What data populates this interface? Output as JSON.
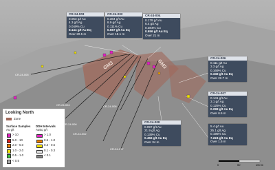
{
  "callouts": [
    {
      "hole": "CR-24-003",
      "lines": [
        "0.053 g/t Au",
        "4.3 g/t Ag",
        "0.049% Cu"
      ],
      "result": "0.144 g/t Au Eq",
      "interval": "Over 20.5 m"
    },
    {
      "hole": "CR-24-002",
      "lines": [
        "0.384 g/t Au",
        "8.9 g/t Ag",
        "0.111% Cu"
      ],
      "result": "0.667 g/t Au Eq",
      "interval": "Over 18.1 m"
    },
    {
      "hole": "CR-24-004",
      "lines": [
        "0.179 g/t Au",
        "6.4 g/t Ag",
        "0.384% Cu"
      ],
      "result": "0.656 g/t Au Eq",
      "interval": "Over 21 m"
    },
    {
      "hole": "CR-24-006",
      "lines": [
        "0.111 g/t Au",
        "3.3 g/t Ag",
        "0.169% Cu"
      ],
      "result": "0.349 g/t Au Eq",
      "interval": "Over 22.7 m"
    },
    {
      "hole": "CR-24-007",
      "lines": [
        "0.141 g/t Au",
        "3.1 g/t Ag",
        "0.125% Cu"
      ],
      "result": "0.298 g/t Au Eq",
      "interval": "Over 6.5 m"
    },
    {
      "hole": "CR-24-008",
      "lines": [
        "0.097 g/t Au",
        "21.9 g/t Ag",
        "0.139% Cu"
      ],
      "result": "0.456 g/t Au Eq",
      "interval": "Over 34 m"
    },
    {
      "lines": [
        "5.4 g/t Au",
        "25.1 g/t Ag",
        "0.195% Cu"
      ],
      "result": "7.224 g/t Au Eq",
      "interval": "Over 1.5 m"
    }
  ],
  "map_labels": {
    "zones": [
      "GM3",
      "GM3"
    ],
    "holes": [
      "CR-24-005",
      "CR-24-004",
      "CR-24-003",
      "CR-24-006",
      "CR-24-002",
      "CR-24-008",
      "CR-24-007"
    ]
  },
  "legend": {
    "title": "Looking North",
    "zone": "Zone",
    "surface_title": "Surface Samples",
    "surface_unit": "Au g/t",
    "surface": [
      "> 10",
      "5.0 - 10",
      "2.0 - 5.0",
      "1.0 - 2.0",
      "0.5 - 1.0",
      "< 0.5"
    ],
    "ddh_title": "DDH Intervals",
    "ddh_unit": "AuEq g/t",
    "ddh": [
      "> 1.0",
      "0.5 - 1.0",
      "0.3 - 0.5",
      "0.1 - 0.3",
      "< 0.1"
    ]
  },
  "scale": {
    "labels": [
      "0",
      "50",
      "100 m"
    ]
  }
}
